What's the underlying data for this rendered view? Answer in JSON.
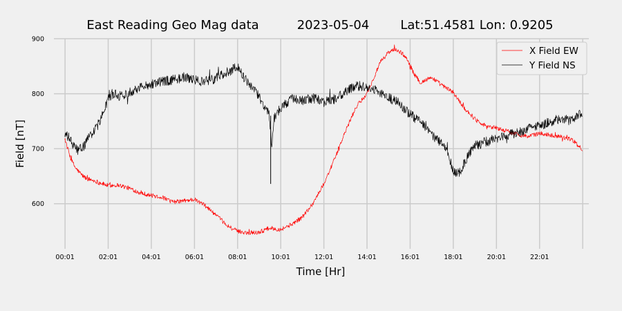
{
  "chart_data": {
    "type": "line",
    "title_parts": [
      "East Reading Geo Mag data",
      "2023-05-04",
      "Lat:51.4581  Lon: 0.9205"
    ],
    "xlabel": "Time  [Hr]",
    "ylabel": "Field  [nT]",
    "xlim": [
      -0.5,
      24.3
    ],
    "ylim": [
      518,
      900
    ],
    "x_ticks": [
      {
        "value": 0.0167,
        "label": "00:01"
      },
      {
        "value": 2.0167,
        "label": "02:01"
      },
      {
        "value": 4.0167,
        "label": "04:01"
      },
      {
        "value": 6.0167,
        "label": "06:01"
      },
      {
        "value": 8.0167,
        "label": "08:01"
      },
      {
        "value": 10.0167,
        "label": "10:01"
      },
      {
        "value": 12.0167,
        "label": "12:01"
      },
      {
        "value": 14.0167,
        "label": "14:01"
      },
      {
        "value": 16.0167,
        "label": "16:01"
      },
      {
        "value": 18.0167,
        "label": "18:01"
      },
      {
        "value": 20.0167,
        "label": "20:01"
      },
      {
        "value": 22.0167,
        "label": "22:01"
      },
      {
        "value": 24.0167,
        "label": ""
      }
    ],
    "y_ticks": [
      {
        "value": 600,
        "label": "600"
      },
      {
        "value": 700,
        "label": "700"
      },
      {
        "value": 800,
        "label": "800"
      },
      {
        "value": 900,
        "label": "900"
      }
    ],
    "grid": true,
    "legend_position": "top-right",
    "series": [
      {
        "name": "X Field EW",
        "color": "#ff0000",
        "x": [
          0,
          0.1,
          0.3,
          0.5,
          0.8,
          1.0,
          1.5,
          2.0,
          2.5,
          3.0,
          3.5,
          4.0,
          4.5,
          5.0,
          5.5,
          6.0,
          6.5,
          7.0,
          7.5,
          8.0,
          8.5,
          9.0,
          9.5,
          10.0,
          10.5,
          11.0,
          11.5,
          12.0,
          12.5,
          13.0,
          13.5,
          14.0,
          14.3,
          14.6,
          15.0,
          15.3,
          15.6,
          15.9,
          16.2,
          16.5,
          17.0,
          17.5,
          18.0,
          18.5,
          19.0,
          19.5,
          20.0,
          20.5,
          21.0,
          21.5,
          22.0,
          22.5,
          23.0,
          23.5,
          24.0
        ],
        "y": [
          720,
          705,
          680,
          665,
          652,
          646,
          640,
          633,
          634,
          628,
          620,
          615,
          612,
          603,
          605,
          608,
          597,
          580,
          561,
          550,
          547,
          548,
          556,
          553,
          562,
          575,
          600,
          635,
          680,
          730,
          775,
          800,
          825,
          855,
          875,
          880,
          875,
          862,
          835,
          820,
          830,
          815,
          803,
          775,
          755,
          742,
          738,
          732,
          726,
          722,
          728,
          725,
          722,
          717,
          698
        ]
      },
      {
        "name": "Y Field NS",
        "color": "#000000",
        "x": [
          0,
          0.2,
          0.4,
          0.6,
          0.8,
          1.0,
          1.2,
          1.5,
          1.8,
          2.0,
          2.3,
          2.6,
          3.0,
          3.5,
          4.0,
          4.5,
          5.0,
          5.5,
          6.0,
          6.5,
          7.0,
          7.5,
          7.8,
          8.0,
          8.3,
          8.7,
          9.0,
          9.3,
          9.5,
          9.6,
          9.7,
          10.0,
          10.5,
          11.0,
          11.5,
          12.0,
          12.5,
          13.0,
          13.5,
          14.0,
          14.5,
          15.0,
          15.5,
          16.0,
          16.5,
          17.0,
          17.5,
          17.8,
          18.0,
          18.3,
          18.6,
          19.0,
          19.5,
          20.0,
          20.5,
          21.0,
          21.5,
          22.0,
          22.5,
          23.0,
          23.5,
          24.0
        ],
        "y": [
          725,
          720,
          705,
          698,
          700,
          712,
          725,
          740,
          765,
          790,
          800,
          795,
          803,
          812,
          818,
          822,
          825,
          830,
          825,
          822,
          828,
          838,
          845,
          850,
          830,
          810,
          795,
          775,
          760,
          700,
          755,
          775,
          790,
          787,
          792,
          785,
          790,
          802,
          815,
          812,
          805,
          793,
          783,
          763,
          748,
          725,
          710,
          690,
          660,
          655,
          680,
          705,
          712,
          718,
          725,
          728,
          738,
          742,
          748,
          755,
          750,
          765
        ]
      }
    ],
    "spikes": [
      {
        "series": "Y Field NS",
        "x": 9.55,
        "top": 760,
        "bottom": 636
      }
    ]
  }
}
